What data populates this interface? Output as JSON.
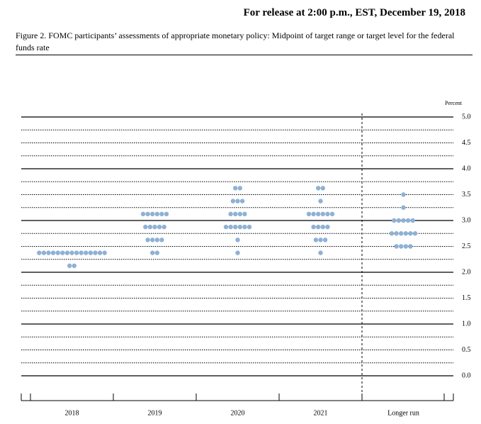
{
  "release": "For release at 2:00 p.m., EST, December 19, 2018",
  "caption": "Figure 2. FOMC participants’ assessments of appropriate monetary policy: Midpoint of target range or target level for the federal funds rate",
  "chart_data": {
    "type": "dot",
    "y_label": "Percent",
    "categories": [
      "2018",
      "2019",
      "2020",
      "2021",
      "Longer run"
    ],
    "values": [
      [
        2.375,
        2.125
      ],
      [
        3.125,
        2.875,
        2.625,
        2.375
      ],
      [
        3.625,
        3.375,
        3.125,
        2.875,
        2.625,
        2.375
      ],
      [
        3.625,
        3.375,
        3.125,
        2.875,
        2.625,
        2.375
      ],
      [
        3.5,
        3.25,
        3.0,
        2.75,
        2.5
      ]
    ],
    "counts": [
      [
        15,
        2
      ],
      [
        6,
        5,
        4,
        2
      ],
      [
        2,
        3,
        4,
        6,
        1,
        1
      ],
      [
        2,
        1,
        6,
        4,
        3,
        1
      ],
      [
        1,
        1,
        5,
        6,
        4
      ]
    ],
    "color": "#8fb1d4",
    "ylim": [
      0,
      5
    ],
    "yticks": [
      {
        "value": 0,
        "label": "0.0"
      },
      0.5,
      {
        "value": 1,
        "label": "1.0"
      },
      1.5,
      {
        "value": 2,
        "label": "2.0"
      },
      2.5,
      {
        "value": 3,
        "label": "3.0"
      },
      3.5,
      {
        "value": 4,
        "label": "4.0"
      },
      4.5,
      {
        "value": 5,
        "label": "5.0"
      }
    ],
    "minor_yticks": [
      0.25,
      0.75,
      1.25,
      1.75,
      2.25,
      2.75,
      3.25,
      3.75,
      4.25,
      4.75
    ]
  }
}
